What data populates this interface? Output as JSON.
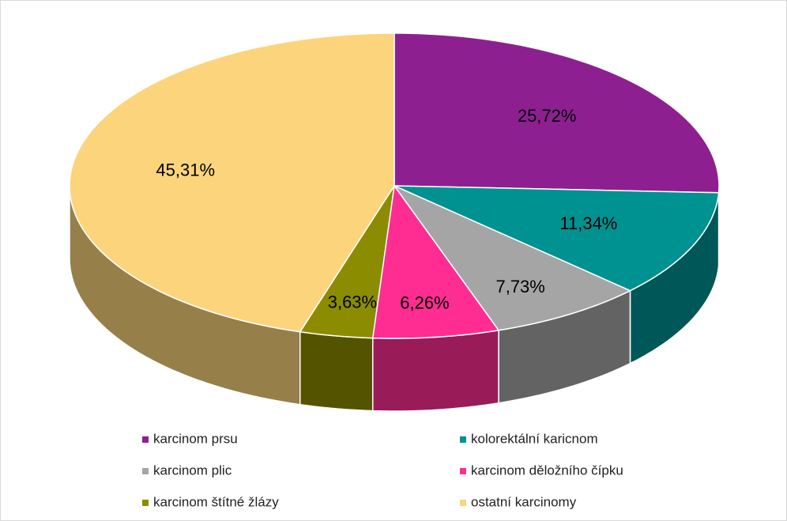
{
  "chart_data": {
    "type": "pie",
    "categories": [
      "karcinom prsu",
      "kolorektální karicnom",
      "karcinom plic",
      "karcinom děložního čípku",
      "karcinom štítné žlázy",
      "ostatní karcinomy"
    ],
    "values": [
      25.72,
      11.34,
      7.73,
      6.26,
      3.63,
      45.31
    ],
    "value_labels": [
      "25,72%",
      "11,34%",
      "7,73%",
      "6,26%",
      "3,63%",
      "45,31%"
    ],
    "colors": [
      "#8e1f91",
      "#009191",
      "#a5a5a5",
      "#ff2d92",
      "#8c8c00",
      "#fbd47c"
    ],
    "legend": "bottom"
  }
}
